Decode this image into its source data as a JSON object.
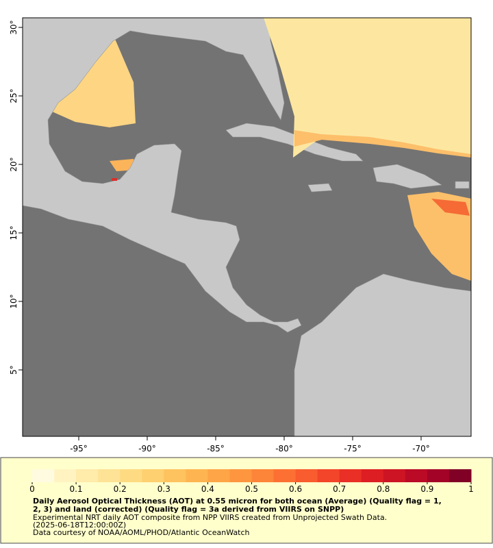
{
  "map": {
    "lonlim": [
      -99.1,
      -66.35
    ],
    "latlim": [
      0.15,
      30.7
    ],
    "lon_ticks": [
      {
        "value": -95,
        "label": "-95°"
      },
      {
        "value": -90,
        "label": "-90°"
      },
      {
        "value": -85,
        "label": "-85°"
      },
      {
        "value": -80,
        "label": "-80°"
      },
      {
        "value": -75,
        "label": "-75°"
      },
      {
        "value": -70,
        "label": "-70°"
      }
    ],
    "lat_ticks": [
      {
        "value": 5,
        "label": "5°"
      },
      {
        "value": 10,
        "label": "10°"
      },
      {
        "value": 15,
        "label": "15°"
      },
      {
        "value": 20,
        "label": "20°"
      },
      {
        "value": 25,
        "label": "25°"
      },
      {
        "value": 30,
        "label": "30°"
      }
    ],
    "colorbar": {
      "range": [
        0,
        1
      ],
      "ticks": [
        0,
        0.1,
        0.2,
        0.3,
        0.4,
        0.5,
        0.6,
        0.7,
        0.8,
        0.9,
        1
      ],
      "colors": [
        "#fffbe0",
        "#fff3c2",
        "#ffebaa",
        "#fee396",
        "#fedb82",
        "#fed06f",
        "#fec35f",
        "#feb551",
        "#fea647",
        "#fd963f",
        "#fd8539",
        "#fc7133",
        "#f95c2e",
        "#f3452a",
        "#ea3026",
        "#dd1f24",
        "#cd1424",
        "#ba0a26",
        "#a30327",
        "#800026"
      ]
    },
    "caption": {
      "title_lines": [
        "Daily Aerosol Optical Thickness (AOT) at 0.55 micron for both ocean (Average) (Quality flag = 1,",
        "2, 3) and land (corrected) (Quality flag = 3a derived from VIIRS on SNPP)"
      ],
      "lines": [
        "Experimental NRT daily AOT composite from NPP VIIRS created from Unprojected Swath Data.",
        "(2025-06-18T12:00:00Z)",
        "Data courtesy of NOAA/AOML/PHOD/Atlantic OceanWatch"
      ]
    }
  }
}
